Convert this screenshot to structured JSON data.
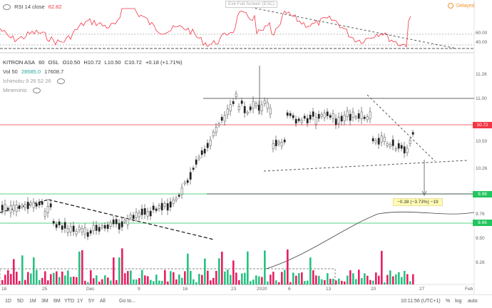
{
  "rsi": {
    "label": "RSI 14 close",
    "value": "62.82",
    "ticks": [
      "60.00",
      "40.00"
    ]
  },
  "tooltip": "Exit Full Screen (ESC)",
  "delayed": "Delayed",
  "header": {
    "symbol": "KITRON ASA",
    "interval": "60",
    "exchange": "OSL",
    "ohlc": [
      "O10.50",
      "H10.72",
      "L10.50",
      "C10.72"
    ],
    "change": "+0.18 (+1.71%)"
  },
  "indicators": {
    "vol": {
      "label": "Vol 50",
      "v1": "28585.0",
      "v2": "17608.7"
    },
    "ichimoku": "Ichimoku 9 26 52 26",
    "minervinis": "Minervinis"
  },
  "price_axis": {
    "ticks": [
      "11.26",
      "11.00",
      "10.75",
      "10.50",
      "10.26",
      "10.00",
      "9.76",
      "9.50",
      "9.26"
    ],
    "tags": [
      {
        "text": "10.72",
        "color": "#f23645"
      },
      {
        "text": "9.98",
        "color": "#22c55e"
      },
      {
        "text": "9.66",
        "color": "#22c55e"
      }
    ]
  },
  "measure": "−0.38 (−3.73%) −19",
  "time_axis": [
    "18",
    "25",
    "Dec",
    "9",
    "16",
    "23",
    "2020",
    "6",
    "13",
    "20",
    "27",
    "Feb"
  ],
  "bottom_bar": {
    "ranges": [
      "1D",
      "5D",
      "1M",
      "3M",
      "6M",
      "YTD",
      "1Y",
      "5Y",
      "All"
    ],
    "goto": "Go to...",
    "time": "10:11:56 (UTC+1)",
    "pct": "%",
    "log": "log",
    "auto": "auto"
  },
  "colors": {
    "up": "#26a69a",
    "down": "#ef5350",
    "vol_up": "#26c281",
    "vol_down": "#e91e63",
    "rsi": "#f23645"
  }
}
